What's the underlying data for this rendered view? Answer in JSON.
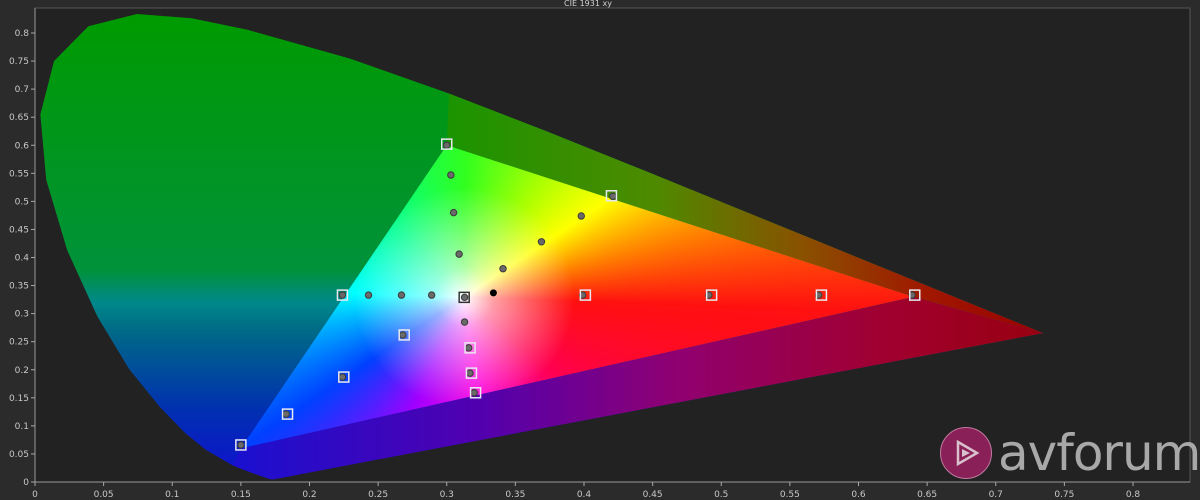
{
  "chart_data": {
    "type": "scatter",
    "title": "CIE 1931 xy",
    "xlabel": "",
    "ylabel": "",
    "xlim": [
      0,
      0.82
    ],
    "ylim": [
      0,
      0.85
    ],
    "grid": false,
    "x_ticks": [
      "0",
      "0.05",
      "0.1",
      "0.15",
      "0.2",
      "0.25",
      "0.3",
      "0.35",
      "0.4",
      "0.45",
      "0.5",
      "0.55",
      "0.6",
      "0.65",
      "0.7",
      "0.75",
      "0.8"
    ],
    "y_ticks": [
      "0",
      "0.05",
      "0.1",
      "0.15",
      "0.2",
      "0.25",
      "0.3",
      "0.35",
      "0.4",
      "0.45",
      "0.5",
      "0.55",
      "0.6",
      "0.65",
      "0.7",
      "0.75",
      "0.8"
    ],
    "spectral_locus": [
      [
        0.1741,
        0.005
      ],
      [
        0.1714,
        0.0051
      ],
      [
        0.1644,
        0.0109
      ],
      [
        0.1566,
        0.0177
      ],
      [
        0.144,
        0.0297
      ],
      [
        0.1241,
        0.0578
      ],
      [
        0.1096,
        0.0868
      ],
      [
        0.0913,
        0.1327
      ],
      [
        0.0687,
        0.2007
      ],
      [
        0.0454,
        0.295
      ],
      [
        0.0235,
        0.4127
      ],
      [
        0.0082,
        0.5384
      ],
      [
        0.0039,
        0.6548
      ],
      [
        0.0139,
        0.7502
      ],
      [
        0.0389,
        0.812
      ],
      [
        0.0743,
        0.8338
      ],
      [
        0.1142,
        0.8262
      ],
      [
        0.1547,
        0.8059
      ],
      [
        0.2296,
        0.7543
      ],
      [
        0.3016,
        0.6923
      ],
      [
        0.3731,
        0.6245
      ],
      [
        0.4441,
        0.5547
      ],
      [
        0.5125,
        0.4866
      ],
      [
        0.5752,
        0.4242
      ],
      [
        0.627,
        0.3725
      ],
      [
        0.6915,
        0.3083
      ],
      [
        0.719,
        0.2809
      ],
      [
        0.7347,
        0.2653
      ]
    ],
    "gamut_triangle": {
      "red": [
        0.64,
        0.33
      ],
      "green": [
        0.3,
        0.6
      ],
      "blue": [
        0.15,
        0.06
      ],
      "white": [
        0.3127,
        0.329
      ]
    },
    "targets": [
      [
        0.3,
        0.602
      ],
      [
        0.641,
        0.333
      ],
      [
        0.15,
        0.066
      ],
      [
        0.42,
        0.51
      ],
      [
        0.224,
        0.333
      ],
      [
        0.3127,
        0.329
      ],
      [
        0.401,
        0.333
      ],
      [
        0.493,
        0.333
      ],
      [
        0.573,
        0.333
      ],
      [
        0.269,
        0.262
      ],
      [
        0.225,
        0.187
      ],
      [
        0.184,
        0.121
      ],
      [
        0.317,
        0.239
      ],
      [
        0.318,
        0.194
      ],
      [
        0.321,
        0.159
      ]
    ],
    "measured": [
      [
        0.3,
        0.6
      ],
      [
        0.303,
        0.547
      ],
      [
        0.305,
        0.48
      ],
      [
        0.309,
        0.406
      ],
      [
        0.399,
        0.333
      ],
      [
        0.491,
        0.333
      ],
      [
        0.571,
        0.333
      ],
      [
        0.639,
        0.333
      ],
      [
        0.268,
        0.262
      ],
      [
        0.224,
        0.187
      ],
      [
        0.183,
        0.121
      ],
      [
        0.15,
        0.066
      ],
      [
        0.224,
        0.333
      ],
      [
        0.243,
        0.333
      ],
      [
        0.267,
        0.333
      ],
      [
        0.289,
        0.333
      ],
      [
        0.421,
        0.509
      ],
      [
        0.398,
        0.474
      ],
      [
        0.369,
        0.428
      ],
      [
        0.341,
        0.38
      ],
      [
        0.313,
        0.285
      ],
      [
        0.316,
        0.239
      ],
      [
        0.317,
        0.194
      ],
      [
        0.32,
        0.159
      ],
      [
        0.313,
        0.329
      ]
    ],
    "reference_point": [
      0.334,
      0.337
    ]
  },
  "colors": {
    "plot_bg": "#222222",
    "page_bg": "#2b2b2b",
    "target": "#e8e8f0",
    "measured": "#6a6a6a",
    "reference": "#000000"
  },
  "watermark": {
    "text": "avforums",
    "logo_color": "#8a2058"
  }
}
